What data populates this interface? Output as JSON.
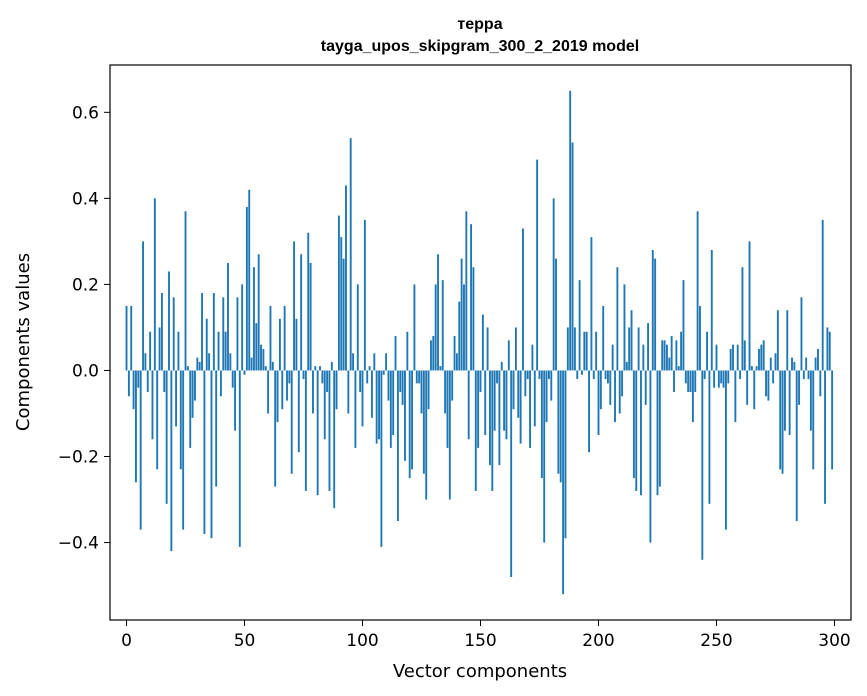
{
  "chart_data": {
    "type": "bar",
    "title": "терра",
    "subtitle": "tayga_upos_skipgram_300_2_2019 model",
    "xlabel": "Vector components",
    "ylabel": "Components values",
    "xlim": [
      -7.0,
      307.0
    ],
    "ylim": [
      -0.58,
      0.71
    ],
    "xticks": [
      0,
      50,
      100,
      150,
      200,
      250,
      300
    ],
    "xtick_labels": [
      "0",
      "50",
      "100",
      "150",
      "200",
      "250",
      "300"
    ],
    "yticks": [
      -0.4,
      -0.2,
      0.0,
      0.2,
      0.4,
      0.6
    ],
    "ytick_labels": [
      "−0.4",
      "−0.2",
      "0.0",
      "0.2",
      "0.4",
      "0.6"
    ],
    "bar_color": "#1f77b4",
    "bar_width": 0.8,
    "values": [
      0.15,
      -0.06,
      0.15,
      -0.09,
      -0.26,
      -0.04,
      -0.37,
      0.3,
      0.04,
      -0.05,
      0.09,
      -0.16,
      0.4,
      -0.23,
      0.1,
      0.18,
      -0.05,
      -0.31,
      0.23,
      -0.42,
      0.17,
      -0.13,
      0.09,
      -0.23,
      -0.37,
      0.37,
      0.01,
      -0.18,
      -0.11,
      -0.07,
      0.03,
      0.02,
      0.18,
      -0.38,
      0.12,
      0.04,
      -0.39,
      0.18,
      -0.27,
      0.09,
      -0.06,
      0.17,
      0.09,
      0.25,
      0.04,
      -0.04,
      -0.14,
      0.17,
      -0.41,
      0.2,
      -0.01,
      0.38,
      0.42,
      0.03,
      0.24,
      0.11,
      0.27,
      0.06,
      0.05,
      0.01,
      -0.1,
      0.15,
      0.02,
      -0.27,
      -0.12,
      0.12,
      -0.09,
      0.15,
      -0.07,
      -0.03,
      -0.24,
      0.3,
      0.12,
      -0.19,
      0.27,
      -0.02,
      -0.28,
      0.32,
      0.25,
      -0.1,
      0.01,
      -0.29,
      0.01,
      -0.03,
      -0.16,
      -0.05,
      -0.28,
      0.02,
      -0.32,
      -0.09,
      0.36,
      0.31,
      0.26,
      0.43,
      -0.1,
      0.54,
      0.04,
      -0.18,
      0.2,
      -0.05,
      -0.13,
      0.35,
      -0.03,
      0.01,
      -0.11,
      0.04,
      -0.17,
      -0.16,
      -0.41,
      -0.01,
      0.04,
      -0.07,
      -0.18,
      -0.15,
      0.08,
      -0.35,
      -0.05,
      -0.08,
      -0.21,
      0.09,
      -0.25,
      -0.23,
      0.2,
      -0.03,
      -0.03,
      -0.1,
      -0.24,
      -0.3,
      -0.09,
      0.07,
      0.08,
      0.2,
      0.27,
      0.01,
      0.21,
      -0.1,
      -0.18,
      -0.3,
      -0.07,
      0.08,
      0.04,
      0.16,
      0.26,
      0.2,
      0.37,
      -0.16,
      0.34,
      0.24,
      -0.28,
      -0.18,
      -0.05,
      0.13,
      -0.15,
      0.1,
      -0.22,
      -0.28,
      -0.14,
      -0.03,
      -0.22,
      0.02,
      -0.14,
      -0.16,
      0.07,
      -0.48,
      -0.09,
      0.1,
      -0.11,
      -0.17,
      0.33,
      -0.06,
      -0.02,
      -0.18,
      0.06,
      -0.13,
      0.49,
      -0.02,
      -0.25,
      -0.4,
      -0.12,
      -0.02,
      -0.07,
      0.4,
      0.26,
      -0.24,
      -0.26,
      -0.52,
      -0.39,
      0.1,
      0.65,
      0.53,
      0.1,
      -0.02,
      0.21,
      -0.01,
      0.09,
      0.09,
      -0.19,
      0.31,
      -0.02,
      0.09,
      -0.15,
      -0.09,
      0.15,
      -0.02,
      -0.03,
      -0.08,
      0.06,
      -0.12,
      0.24,
      -0.1,
      -0.06,
      0.2,
      0.02,
      0.1,
      0.14,
      -0.25,
      -0.28,
      0.1,
      -0.29,
      0.06,
      -0.08,
      0.11,
      -0.4,
      0.28,
      0.26,
      -0.29,
      -0.27,
      0.07,
      0.07,
      0.06,
      0.03,
      0.08,
      -0.05,
      0.07,
      0.01,
      0.09,
      0.21,
      -0.03,
      -0.05,
      -0.05,
      -0.12,
      -0.05,
      0.37,
      0.15,
      -0.44,
      -0.02,
      0.09,
      -0.31,
      0.28,
      -0.04,
      0.06,
      -0.04,
      -0.03,
      -0.04,
      -0.37,
      -0.03,
      0.05,
      0.06,
      -0.12,
      0.06,
      -0.02,
      0.24,
      0.07,
      -0.08,
      0.3,
      0.01,
      -0.09,
      0.01,
      0.05,
      0.06,
      0.07,
      -0.06,
      -0.07,
      0.03,
      -0.03,
      0.04,
      0.14,
      -0.23,
      -0.24,
      -0.14,
      0.14,
      -0.15,
      0.03,
      0.02,
      -0.35,
      -0.08,
      0.17,
      -0.02,
      0.03,
      -0.02,
      -0.14,
      -0.23,
      0.03,
      0.05,
      -0.06,
      0.35,
      -0.31,
      0.1,
      0.09,
      -0.23
    ]
  }
}
